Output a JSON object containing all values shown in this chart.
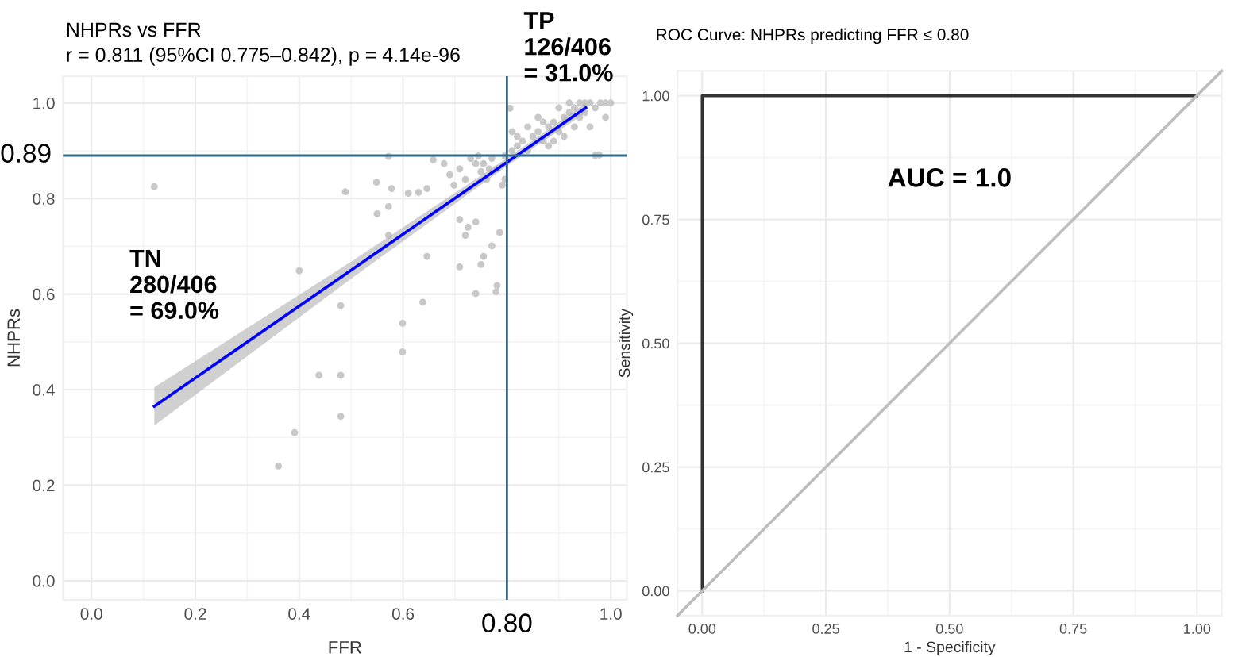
{
  "chart_data": [
    {
      "type": "scatter",
      "title": "NHPRs vs FFR",
      "subtitle": "r = 0.811 (95%CI 0.775–0.842), p = 4.14e-96",
      "xlabel": "FFR",
      "ylabel": "NHPRs",
      "xlim": [
        -0.055,
        1.031
      ],
      "ylim": [
        -0.04,
        1.056
      ],
      "xticks": [
        {
          "value": 0.0,
          "label": "0.0"
        },
        {
          "value": 0.2,
          "label": "0.2"
        },
        {
          "value": 0.4,
          "label": "0.4"
        },
        {
          "value": 0.6,
          "label": "0.6"
        },
        {
          "value": 1.0,
          "label": "1.0"
        }
      ],
      "yticks": [
        {
          "value": 0.0,
          "label": "0.0"
        },
        {
          "value": 0.2,
          "label": "0.2"
        },
        {
          "value": 0.4,
          "label": "0.4"
        },
        {
          "value": 0.6,
          "label": "0.6"
        },
        {
          "value": 0.8,
          "label": "0.8"
        },
        {
          "value": 1.0,
          "label": "1.0"
        }
      ],
      "grid": true,
      "series": [
        {
          "type": "scatter",
          "marker": "circle",
          "color": "#c8c8c8",
          "x": [
            0.121,
            0.489,
            0.549,
            0.572,
            0.578,
            0.55,
            0.572,
            0.572,
            0.61,
            0.63,
            0.646,
            0.658,
            0.438,
            0.48,
            0.48,
            0.391,
            0.36,
            0.599,
            0.599,
            0.646,
            0.638,
            0.48,
            0.4,
            0.709,
            0.74,
            0.781,
            0.779,
            0.75,
            0.755,
            0.771,
            0.786,
            0.709,
            0.725,
            0.72,
            0.74,
            0.679,
            0.69,
            0.698,
            0.709,
            0.72,
            0.73,
            0.74,
            0.75,
            0.761,
            0.771,
            0.781,
            0.796,
            0.796,
            0.791,
            0.766,
            0.745,
            0.755,
            0.81,
            0.82,
            0.83,
            0.84,
            0.85,
            0.86,
            0.87,
            0.88,
            0.89,
            0.9,
            0.91,
            0.92,
            0.93,
            0.94,
            0.95,
            0.96,
            0.97,
            0.98,
            0.99,
            0.84,
            0.86,
            0.88,
            0.9,
            0.92,
            0.94,
            0.96,
            0.97,
            0.82,
            0.87,
            0.93,
            0.81,
            0.89,
            0.95,
            0.91,
            0.99,
            0.978,
            1.0,
            0.806
          ],
          "values": [
            0.825,
            0.814,
            0.834,
            0.888,
            0.821,
            0.768,
            0.783,
            0.723,
            0.811,
            0.813,
            0.821,
            0.881,
            0.43,
            0.43,
            0.344,
            0.31,
            0.24,
            0.539,
            0.479,
            0.679,
            0.583,
            0.576,
            0.649,
            0.657,
            0.601,
            0.618,
            0.605,
            0.662,
            0.679,
            0.701,
            0.729,
            0.756,
            0.74,
            0.723,
            0.751,
            0.873,
            0.85,
            0.828,
            0.862,
            0.84,
            0.884,
            0.873,
            0.856,
            0.84,
            0.884,
            0.862,
            0.889,
            0.84,
            0.828,
            0.862,
            0.889,
            0.873,
            0.9,
            0.91,
            0.92,
            0.9,
            0.93,
            0.94,
            0.92,
            0.95,
            0.96,
            0.94,
            0.97,
            0.98,
            0.99,
            1.0,
            1.0,
            1.0,
            0.99,
            1.0,
            1.0,
            0.95,
            0.97,
            0.91,
            0.99,
            1.0,
            0.97,
            0.95,
            0.89,
            0.93,
            0.96,
            0.95,
            0.94,
            0.92,
            0.98,
            0.93,
            0.97,
            0.891,
            1.0,
            0.989
          ]
        },
        {
          "type": "line",
          "color": "#0000ff",
          "x": [
            0.121,
            0.5,
            0.8,
            0.952
          ],
          "values": [
            0.365,
            0.65,
            0.876,
            0.99
          ],
          "lower": [
            0.325,
            0.632,
            0.868,
            0.98
          ],
          "upper": [
            0.405,
            0.668,
            0.884,
            1.0
          ]
        }
      ],
      "ref_lines": [
        {
          "axis": "y",
          "value": 0.89,
          "label": "0.89",
          "color": "#2c6a8e"
        },
        {
          "axis": "x",
          "value": 0.8,
          "label": "0.80",
          "color": "#2c6a8e"
        }
      ],
      "annotations": [
        "TN\n280/406\n= 69.0%",
        "TP\n126/406\n= 31.0%"
      ]
    },
    {
      "type": "line",
      "title": "ROC Curve: NHPRs predicting FFR ≤ 0.80",
      "xlabel": "1 - Specificity",
      "ylabel": "Sensitivity",
      "xlim": [
        -0.05,
        1.05
      ],
      "ylim": [
        -0.05,
        1.05
      ],
      "xticks": [
        {
          "value": 0,
          "label": "0.00"
        },
        {
          "value": 0.25,
          "label": "0.25"
        },
        {
          "value": 0.5,
          "label": "0.50"
        },
        {
          "value": 0.75,
          "label": "0.75"
        },
        {
          "value": 1,
          "label": "1.00"
        }
      ],
      "yticks": [
        {
          "value": 0,
          "label": "0.00"
        },
        {
          "value": 0.25,
          "label": "0.25"
        },
        {
          "value": 0.5,
          "label": "0.50"
        },
        {
          "value": 0.75,
          "label": "0.75"
        },
        {
          "value": 1,
          "label": "1.00"
        }
      ],
      "grid": true,
      "series": [
        {
          "color": "#333333",
          "x": [
            0,
            0,
            1
          ],
          "values": [
            0,
            1,
            1
          ]
        },
        {
          "color": "#bdbdbd",
          "x": [
            -0.05,
            1.05
          ],
          "values": [
            -0.05,
            1.05
          ]
        }
      ],
      "annotations": [
        "AUC = 1.0"
      ]
    }
  ]
}
